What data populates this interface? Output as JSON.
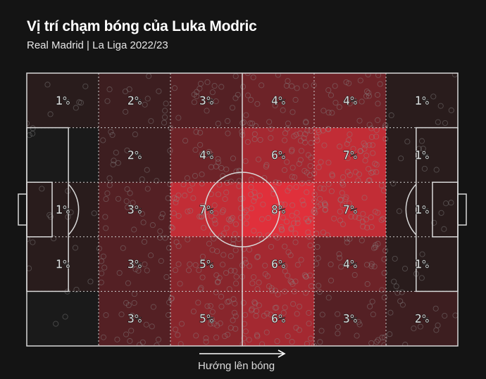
{
  "header": {
    "title": "Vị trí chạm bóng của Luka Modric",
    "subtitle": "Real Madrid | La Liga 2022/23"
  },
  "caption": "Hướng lên bóng",
  "colors": {
    "background": "#141414",
    "line": "#d8d8d8",
    "heat_low": "#1a1a1a",
    "heat_high": "#e0303b",
    "label": "#d9d9d9",
    "touch_marker": "#8a8a8a"
  },
  "chart_data": {
    "type": "heatmap",
    "title": "Vị trí chạm bóng của Luka Modric",
    "subtitle": "Real Madrid | La Liga 2022/23",
    "direction": "left-to-right",
    "columns": 6,
    "rows": 5,
    "values": [
      [
        1,
        2,
        3,
        4,
        4,
        1
      ],
      [
        null,
        2,
        4,
        6,
        7,
        1
      ],
      [
        1,
        3,
        7,
        8,
        7,
        1
      ],
      [
        1,
        3,
        5,
        6,
        4,
        1
      ],
      [
        null,
        3,
        5,
        6,
        3,
        2
      ]
    ],
    "labels": [
      [
        "1%",
        "2%",
        "3%",
        "4%",
        "4%",
        "1%"
      ],
      [
        "",
        "2%",
        "4%",
        "6%",
        "7%",
        "1%"
      ],
      [
        "1%",
        "3%",
        "7%",
        "8%",
        "7%",
        "1%"
      ],
      [
        "1%",
        "3%",
        "5%",
        "6%",
        "4%",
        "1%"
      ],
      [
        "",
        "3%",
        "5%",
        "6%",
        "3%",
        "2%"
      ]
    ],
    "unit": "%",
    "max_value": 8
  }
}
